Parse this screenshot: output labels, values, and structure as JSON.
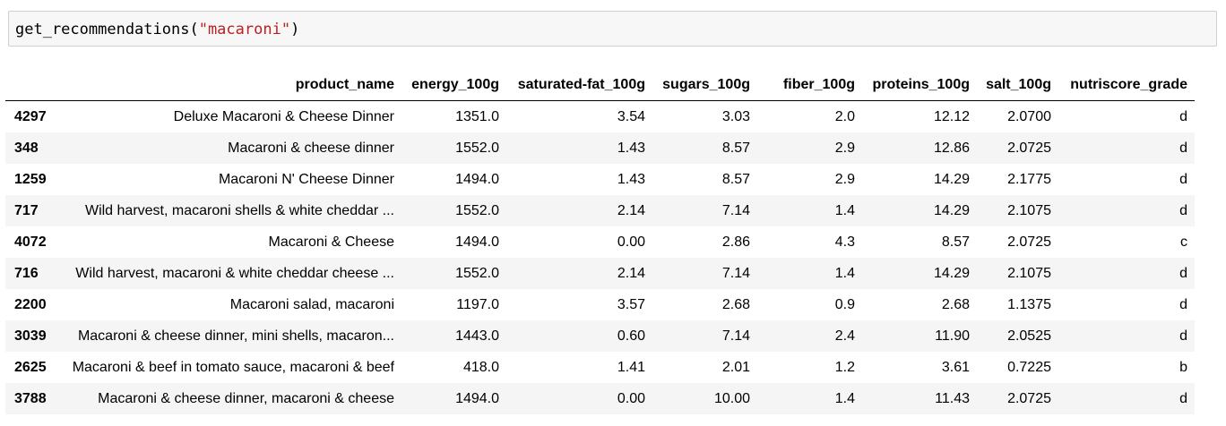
{
  "code": {
    "func": "get_recommendations(",
    "arg": "\"macaroni\"",
    "close": ")"
  },
  "table": {
    "columns": [
      "product_name",
      "energy_100g",
      "saturated-fat_100g",
      "sugars_100g",
      "fiber_100g",
      "proteins_100g",
      "salt_100g",
      "nutriscore_grade"
    ],
    "rows": [
      {
        "index": "4297",
        "product_name": "Deluxe Macaroni & Cheese Dinner",
        "energy": "1351.0",
        "sat_fat": "3.54",
        "sugars": "3.03",
        "fiber": "2.0",
        "proteins": "12.12",
        "salt": "2.0700",
        "grade": "d"
      },
      {
        "index": "348",
        "product_name": "Macaroni & cheese dinner",
        "energy": "1552.0",
        "sat_fat": "1.43",
        "sugars": "8.57",
        "fiber": "2.9",
        "proteins": "12.86",
        "salt": "2.0725",
        "grade": "d"
      },
      {
        "index": "1259",
        "product_name": "Macaroni N' Cheese Dinner",
        "energy": "1494.0",
        "sat_fat": "1.43",
        "sugars": "8.57",
        "fiber": "2.9",
        "proteins": "14.29",
        "salt": "2.1775",
        "grade": "d"
      },
      {
        "index": "717",
        "product_name": "Wild harvest, macaroni shells & white cheddar ...",
        "energy": "1552.0",
        "sat_fat": "2.14",
        "sugars": "7.14",
        "fiber": "1.4",
        "proteins": "14.29",
        "salt": "2.1075",
        "grade": "d"
      },
      {
        "index": "4072",
        "product_name": "Macaroni & Cheese",
        "energy": "1494.0",
        "sat_fat": "0.00",
        "sugars": "2.86",
        "fiber": "4.3",
        "proteins": "8.57",
        "salt": "2.0725",
        "grade": "c"
      },
      {
        "index": "716",
        "product_name": "Wild harvest, macaroni & white cheddar cheese ...",
        "energy": "1552.0",
        "sat_fat": "2.14",
        "sugars": "7.14",
        "fiber": "1.4",
        "proteins": "14.29",
        "salt": "2.1075",
        "grade": "d"
      },
      {
        "index": "2200",
        "product_name": "Macaroni salad, macaroni",
        "energy": "1197.0",
        "sat_fat": "3.57",
        "sugars": "2.68",
        "fiber": "0.9",
        "proteins": "2.68",
        "salt": "1.1375",
        "grade": "d"
      },
      {
        "index": "3039",
        "product_name": "Macaroni & cheese dinner, mini shells, macaron...",
        "energy": "1443.0",
        "sat_fat": "0.60",
        "sugars": "7.14",
        "fiber": "2.4",
        "proteins": "11.90",
        "salt": "2.0525",
        "grade": "d"
      },
      {
        "index": "2625",
        "product_name": "Macaroni & beef in tomato sauce, macaroni & beef",
        "energy": "418.0",
        "sat_fat": "1.41",
        "sugars": "2.01",
        "fiber": "1.2",
        "proteins": "3.61",
        "salt": "0.7225",
        "grade": "b"
      },
      {
        "index": "3788",
        "product_name": "Macaroni & cheese dinner, macaroni & cheese",
        "energy": "1494.0",
        "sat_fat": "0.00",
        "sugars": "10.00",
        "fiber": "1.4",
        "proteins": "11.43",
        "salt": "2.0725",
        "grade": "d"
      }
    ]
  }
}
